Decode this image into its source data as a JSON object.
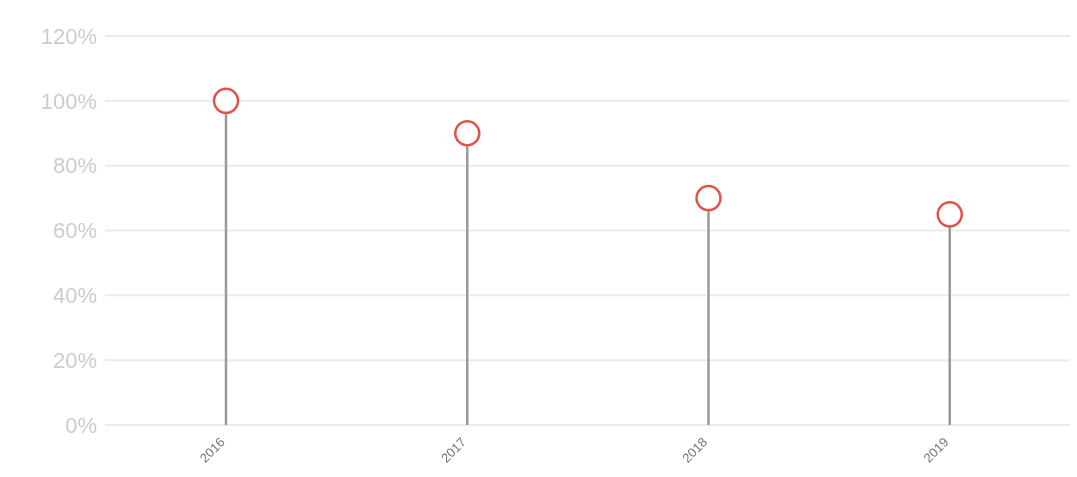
{
  "chart_data": {
    "type": "lollipop",
    "categories": [
      "2016",
      "2017",
      "2018",
      "2019"
    ],
    "series": [
      {
        "color": "#e0544b",
        "values": [
          100,
          90,
          70,
          65
        ]
      }
    ],
    "ylim": [
      0,
      120
    ],
    "yticks": [
      {
        "value": 0,
        "label": "0%"
      },
      {
        "value": 20,
        "label": "20%"
      },
      {
        "value": 40,
        "label": "40%"
      },
      {
        "value": 60,
        "label": "60%"
      },
      {
        "value": 80,
        "label": "80%"
      },
      {
        "value": 100,
        "label": "100%"
      },
      {
        "value": 120,
        "label": "120%"
      }
    ],
    "grid": "y",
    "marker": "circle"
  }
}
